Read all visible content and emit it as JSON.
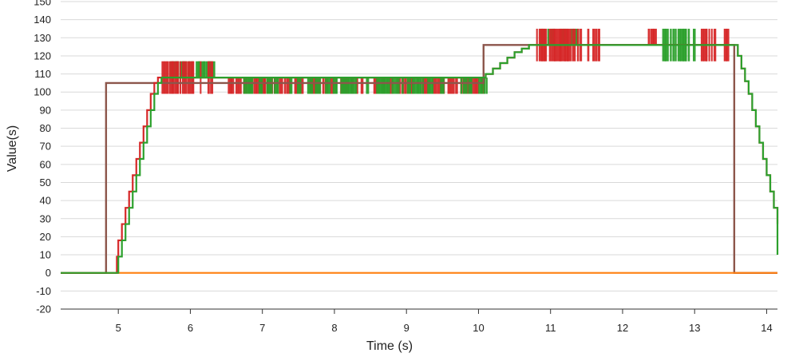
{
  "chart_data": {
    "type": "line",
    "title": "",
    "xlabel": "Time (s)",
    "ylabel": "Value(s)",
    "xlim": [
      4.2,
      14.15
    ],
    "ylim": [
      -20,
      150
    ],
    "x_ticks": [
      5,
      6,
      7,
      8,
      9,
      10,
      11,
      12,
      13,
      14
    ],
    "y_ticks": [
      -20,
      -10,
      0,
      10,
      20,
      30,
      40,
      50,
      60,
      70,
      80,
      90,
      100,
      110,
      120,
      130,
      140,
      150
    ],
    "grid": true,
    "legend": "none",
    "colors": {
      "green": "#2ca02c",
      "red": "#d62728",
      "brown": "#8c564b",
      "orange": "#ff7f0e"
    },
    "series": [
      {
        "color": "#8c564b",
        "x": [
          4.2,
          4.83,
          4.83,
          10.07,
          10.07,
          13.55,
          13.55,
          14.15
        ],
        "y": [
          0,
          0,
          105,
          105,
          126,
          126,
          0,
          0
        ]
      },
      {
        "color": "#ff7f0e",
        "x": [
          4.2,
          14.15
        ],
        "y": [
          0,
          0
        ]
      },
      {
        "color": "#d62728",
        "x": [
          4.2,
          4.95,
          4.98,
          5.0,
          5.05,
          5.1,
          5.15,
          5.2,
          5.25,
          5.3,
          5.35,
          5.4,
          5.45,
          5.5,
          5.55,
          5.6,
          5.65,
          10.0,
          10.1,
          10.2,
          10.3,
          10.4,
          10.5,
          10.6,
          10.7,
          10.8,
          13.55,
          13.6,
          13.65,
          13.7,
          13.75,
          13.8,
          13.85,
          13.9,
          13.95,
          14.0,
          14.05,
          14.1,
          14.15
        ],
        "y": [
          0,
          0,
          9,
          18,
          27,
          36,
          45,
          54,
          63,
          72,
          81,
          90,
          99,
          105,
          108,
          108,
          108,
          108,
          110,
          113,
          116,
          119,
          122,
          124,
          126,
          126,
          126,
          120,
          113,
          106,
          99,
          90,
          81,
          72,
          63,
          54,
          45,
          36,
          27
        ]
      },
      {
        "color": "#2ca02c",
        "x": [
          4.2,
          4.97,
          5.0,
          5.05,
          5.1,
          5.15,
          5.2,
          5.25,
          5.3,
          5.35,
          5.4,
          5.45,
          5.5,
          5.55,
          5.6,
          5.65,
          10.0,
          10.1,
          10.2,
          10.3,
          10.4,
          10.5,
          10.6,
          10.7,
          10.8,
          13.55,
          13.6,
          13.65,
          13.7,
          13.75,
          13.8,
          13.85,
          13.9,
          13.95,
          14.0,
          14.05,
          14.1,
          14.15
        ],
        "y": [
          0,
          0,
          9,
          18,
          27,
          36,
          45,
          54,
          63,
          72,
          81,
          90,
          99,
          105,
          108,
          108,
          108,
          110,
          113,
          116,
          119,
          122,
          124,
          126,
          126,
          126,
          120,
          113,
          106,
          99,
          90,
          81,
          72,
          63,
          54,
          45,
          36,
          10
        ]
      }
    ],
    "noise_bands": [
      {
        "color": "#2ca02c",
        "x_start": 5.72,
        "x_end": 6.4,
        "y_low": 108,
        "y_high": 117
      },
      {
        "color": "#d62728",
        "x_start": 5.6,
        "x_end": 6.3,
        "y_low": 99,
        "y_high": 117
      },
      {
        "color": "#d62728",
        "x_start": 6.52,
        "x_end": 10.05,
        "y_low": 99,
        "y_high": 108
      },
      {
        "color": "#2ca02c",
        "x_start": 6.7,
        "x_end": 10.2,
        "y_low": 99,
        "y_high": 108
      },
      {
        "color": "#2ca02c",
        "x_start": 10.85,
        "x_end": 11.35,
        "y_low": 126,
        "y_high": 135
      },
      {
        "color": "#d62728",
        "x_start": 10.8,
        "x_end": 11.7,
        "y_low": 117,
        "y_high": 135
      },
      {
        "color": "#d62728",
        "x_start": 12.35,
        "x_end": 12.45,
        "y_low": 126,
        "y_high": 135
      },
      {
        "color": "#2ca02c",
        "x_start": 12.55,
        "x_end": 13.0,
        "y_low": 117,
        "y_high": 135
      },
      {
        "color": "#d62728",
        "x_start": 13.05,
        "x_end": 13.45,
        "y_low": 117,
        "y_high": 135
      }
    ]
  }
}
